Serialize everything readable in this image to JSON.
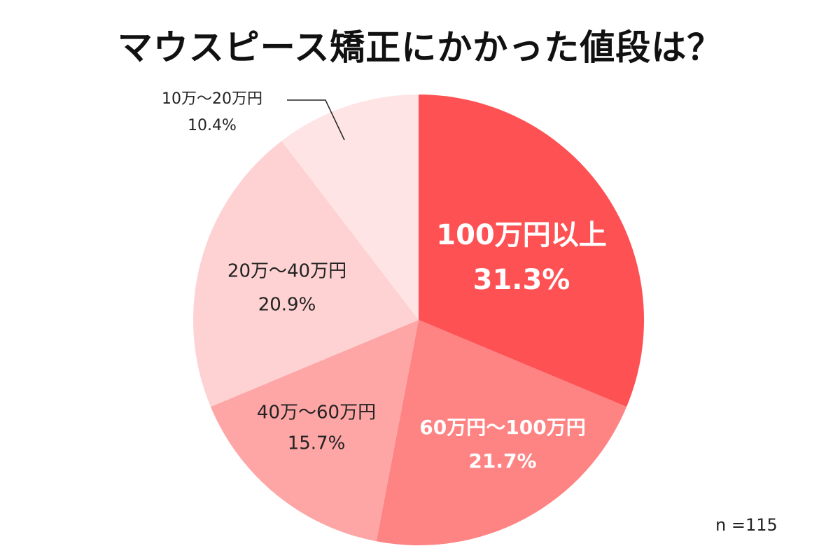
{
  "chart_data": {
    "type": "pie",
    "title": "マウスピース矯正にかかった値段は？",
    "note": "n =115",
    "slices": [
      {
        "label": "100万円以上",
        "value": 31.3,
        "display": "31.3%",
        "color": "#fe5154",
        "text_color": "#ffffff",
        "bold": true
      },
      {
        "label": "60万円〜100万円",
        "value": 21.7,
        "display": "21.7%",
        "color": "#fe8383",
        "text_color": "#ffffff",
        "bold": true
      },
      {
        "label": "40万〜60万円",
        "value": 15.7,
        "display": "15.7%",
        "color": "#fea6a6",
        "text_color": "#222222",
        "bold": false
      },
      {
        "label": "20万〜40万円",
        "value": 20.9,
        "display": "20.9%",
        "color": "#fed2d2",
        "text_color": "#222222",
        "bold": false
      },
      {
        "label": "10万〜20万円",
        "value": 10.4,
        "display": "10.4%",
        "color": "#fee4e4",
        "text_color": "#222222",
        "bold": false
      }
    ]
  }
}
